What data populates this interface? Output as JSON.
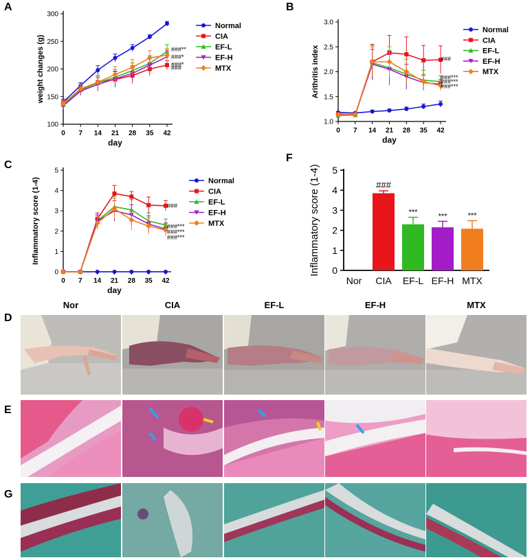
{
  "panel_labels": {
    "A": "A",
    "B": "B",
    "C": "C",
    "D": "D",
    "E": "E",
    "F": "F",
    "G": "G"
  },
  "colors": {
    "Normal": "#1515d6",
    "CIA": "#e8151b",
    "EF-L": "#2fba22",
    "EF-H": "#a31cc8",
    "MTX": "#f07d1e"
  },
  "chart_data": [
    {
      "id": "A",
      "type": "line",
      "xlabel": "day",
      "ylabel": "weight changes (g)",
      "x": [
        0,
        7,
        14,
        21,
        28,
        35,
        42
      ],
      "ylim": [
        100,
        300
      ],
      "yticks": [
        100,
        150,
        200,
        250,
        300
      ],
      "legend": [
        "Normal",
        "CIA",
        "EF-L",
        "EF-H",
        "MTX"
      ],
      "series": [
        {
          "name": "Normal",
          "values": [
            140,
            170,
            198,
            220,
            238,
            258,
            282
          ],
          "err": [
            5,
            5,
            8,
            7,
            6,
            4,
            4
          ]
        },
        {
          "name": "CIA",
          "values": [
            138,
            162,
            176,
            181,
            188,
            200,
            207
          ],
          "err": [
            5,
            8,
            12,
            14,
            14,
            12,
            8
          ]
        },
        {
          "name": "EF-L",
          "values": [
            135,
            162,
            175,
            185,
            197,
            210,
            232
          ],
          "err": [
            5,
            8,
            12,
            14,
            14,
            14,
            12
          ]
        },
        {
          "name": "EF-H",
          "values": [
            133,
            160,
            172,
            182,
            192,
            207,
            222
          ],
          "err": [
            5,
            8,
            12,
            14,
            14,
            13,
            12
          ]
        },
        {
          "name": "MTX",
          "values": [
            137,
            164,
            176,
            190,
            203,
            220,
            225
          ],
          "err": [
            5,
            8,
            12,
            14,
            14,
            13,
            12
          ]
        }
      ],
      "annotations": [
        "###**",
        "###*",
        "###*",
        "###"
      ]
    },
    {
      "id": "B",
      "type": "line",
      "xlabel": "day",
      "ylabel": "Arithritis index",
      "x": [
        0,
        7,
        14,
        21,
        28,
        35,
        42
      ],
      "ylim": [
        1.0,
        3.0
      ],
      "yticks": [
        "1.0",
        "1.5",
        "2.0",
        "2.5",
        "3.0"
      ],
      "legend": [
        "Normal",
        "CIA",
        "EF-L",
        "EF-H",
        "MTX"
      ],
      "series": [
        {
          "name": "Normal",
          "values": [
            1.18,
            1.17,
            1.2,
            1.22,
            1.25,
            1.3,
            1.35
          ],
          "err": [
            0.02,
            0.02,
            0.03,
            0.03,
            0.04,
            0.05,
            0.06
          ]
        },
        {
          "name": "CIA",
          "values": [
            1.15,
            1.14,
            2.2,
            2.38,
            2.35,
            2.23,
            2.24
          ],
          "err": [
            0.02,
            0.02,
            0.35,
            0.35,
            0.35,
            0.3,
            0.28
          ]
        },
        {
          "name": "EF-L",
          "values": [
            1.12,
            1.13,
            2.18,
            2.08,
            1.95,
            1.83,
            1.8
          ],
          "err": [
            0.02,
            0.02,
            0.35,
            0.35,
            0.3,
            0.2,
            0.12
          ]
        },
        {
          "name": "EF-H",
          "values": [
            1.13,
            1.14,
            2.15,
            2.05,
            1.9,
            1.78,
            1.75
          ],
          "err": [
            0.02,
            0.02,
            0.3,
            0.3,
            0.25,
            0.15,
            0.1
          ]
        },
        {
          "name": "MTX",
          "values": [
            1.14,
            1.14,
            2.2,
            2.2,
            2.0,
            1.8,
            1.72
          ],
          "err": [
            0.02,
            0.02,
            0.3,
            0.3,
            0.25,
            0.15,
            0.1
          ]
        }
      ],
      "annotations": [
        "###",
        "###***",
        "###***",
        "###***"
      ]
    },
    {
      "id": "C",
      "type": "line",
      "xlabel": "day",
      "ylabel": "Inflammatory score (1-4)",
      "x": [
        0,
        7,
        14,
        21,
        28,
        35,
        42
      ],
      "ylim": [
        0,
        5
      ],
      "yticks": [
        0,
        1,
        2,
        3,
        4,
        5
      ],
      "legend": [
        "Normal",
        "CIA",
        "EF-L",
        "EF-H",
        "MTX"
      ],
      "series": [
        {
          "name": "Normal",
          "values": [
            0,
            0,
            0,
            0,
            0,
            0,
            0
          ],
          "err": [
            0,
            0,
            0,
            0,
            0,
            0,
            0
          ]
        },
        {
          "name": "CIA",
          "values": [
            0,
            0,
            2.6,
            3.85,
            3.7,
            3.28,
            3.25
          ],
          "err": [
            0,
            0,
            0.3,
            0.4,
            0.25,
            0.4,
            0.25
          ]
        },
        {
          "name": "EF-L",
          "values": [
            0,
            0,
            2.5,
            3.2,
            3.05,
            2.5,
            2.3
          ],
          "err": [
            0,
            0,
            0.3,
            0.5,
            0.5,
            0.4,
            0.3
          ]
        },
        {
          "name": "EF-H",
          "values": [
            0,
            0,
            2.5,
            3.0,
            2.8,
            2.35,
            2.1
          ],
          "err": [
            0,
            0,
            0.3,
            0.5,
            0.5,
            0.4,
            0.3
          ]
        },
        {
          "name": "MTX",
          "values": [
            0,
            0,
            2.4,
            3.1,
            2.55,
            2.25,
            2.05
          ],
          "err": [
            0,
            0,
            0.3,
            0.5,
            0.5,
            0.4,
            0.3
          ]
        }
      ],
      "annotations": [
        "###",
        "###***",
        "###***",
        "###***"
      ]
    },
    {
      "id": "F",
      "type": "bar",
      "ylabel": "Inflammatory score (1-4)",
      "categories": [
        "Nor",
        "CIA",
        "EF-L",
        "EF-H",
        "MTX"
      ],
      "values": [
        0,
        3.85,
        2.3,
        2.15,
        2.08
      ],
      "err": [
        0,
        0.12,
        0.35,
        0.3,
        0.4
      ],
      "bar_colors": [
        "#1515d6",
        "#e8151b",
        "#2fba22",
        "#a31cc8",
        "#f07d1e"
      ],
      "significance": [
        "",
        "###",
        "***",
        "***",
        "***"
      ],
      "ylim": [
        0,
        5
      ],
      "yticks": [
        0,
        1,
        2,
        3,
        4,
        5
      ]
    }
  ],
  "photo_columns": [
    "Nor",
    "CIA",
    "EF-L",
    "EF-H",
    "MTX"
  ]
}
